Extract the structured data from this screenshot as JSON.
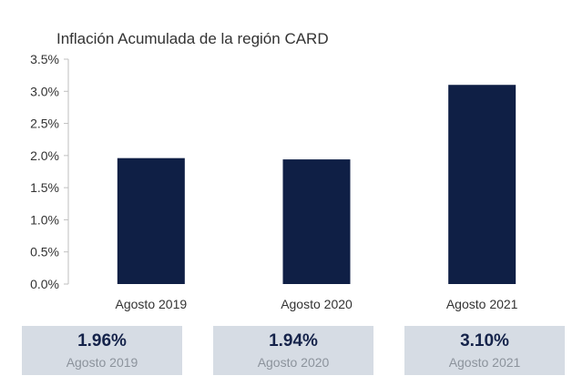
{
  "chart_data": {
    "type": "bar",
    "title": "Inflación Acumulada de la región CARD",
    "categories": [
      "Agosto 2019",
      "Agosto 2020",
      "Agosto 2021"
    ],
    "values": [
      1.96,
      1.94,
      3.1
    ],
    "yticks": [
      "0.0%",
      "0.5%",
      "1.0%",
      "1.5%",
      "2.0%",
      "2.5%",
      "3.0%",
      "3.5%"
    ],
    "ylim": [
      0,
      3.5
    ],
    "bar_color": "#0f1f45",
    "grid": false,
    "legend": "none"
  },
  "summary_boxes": [
    {
      "value": "1.96%",
      "label": "Agosto 2019"
    },
    {
      "value": "1.94%",
      "label": "Agosto 2020"
    },
    {
      "value": "3.10%",
      "label": "Agosto 2021"
    }
  ]
}
